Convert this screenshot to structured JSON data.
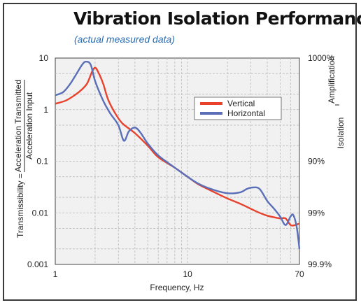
{
  "title": "Vibration Isolation Performance",
  "subtitle": "(actual measured data)",
  "colors": {
    "vertical": "#e8412c",
    "horizontal": "#5a6fb8",
    "background": "#f1f1f1",
    "grid": "#bbbbbb"
  },
  "chart_data": {
    "type": "line",
    "xscale": "log",
    "yscale": "log",
    "xlim": [
      1,
      70
    ],
    "ylim": [
      0.001,
      10
    ],
    "xlabel": "Frequency, Hz",
    "ylabel_prefix": "Transmissibility =",
    "ylabel_numerator": "Acceleration Transmitted",
    "ylabel_denominator": "Acceleration Input",
    "right_label_top": "Amplification",
    "right_label_bottom": "Isolation",
    "grid": true,
    "legend_position": "top-right",
    "xticks": [
      {
        "value": 1,
        "label": "1"
      },
      {
        "value": 10,
        "label": "10"
      },
      {
        "value": 70,
        "label": "70"
      }
    ],
    "yticks": [
      {
        "value": 10,
        "label": "10"
      },
      {
        "value": 1,
        "label": "1"
      },
      {
        "value": 0.1,
        "label": "0.1"
      },
      {
        "value": 0.01,
        "label": "0.01"
      },
      {
        "value": 0.001,
        "label": "0.001"
      }
    ],
    "right_ticks": [
      {
        "value": 10,
        "label": "1000%"
      },
      {
        "value": 0.1,
        "label": "90%"
      },
      {
        "value": 0.01,
        "label": "99%"
      },
      {
        "value": 0.001,
        "label": "99.9%"
      }
    ],
    "series": [
      {
        "name": "Vertical",
        "x": [
          1.0,
          1.2,
          1.4,
          1.6,
          1.75,
          1.9,
          2.0,
          2.1,
          2.3,
          2.5,
          2.8,
          3.2,
          4.0,
          5.0,
          6.0,
          8.0,
          10.0,
          12.0,
          15.0,
          20.0,
          25.0,
          30.0,
          35.0,
          40.0,
          45.0,
          50.0,
          55.0,
          60.0,
          65.0,
          70.0
        ],
        "y": [
          1.3,
          1.5,
          1.9,
          2.5,
          3.3,
          5.5,
          6.5,
          5.5,
          3.2,
          1.6,
          0.9,
          0.55,
          0.35,
          0.2,
          0.12,
          0.075,
          0.05,
          0.036,
          0.027,
          0.019,
          0.015,
          0.012,
          0.01,
          0.0088,
          0.0082,
          0.0078,
          0.0078,
          0.0058,
          0.0058,
          0.0062
        ]
      },
      {
        "name": "Horizontal",
        "x": [
          1.0,
          1.15,
          1.3,
          1.45,
          1.6,
          1.7,
          1.85,
          2.0,
          2.3,
          2.6,
          3.0,
          3.3,
          3.6,
          4.0,
          4.4,
          5.0,
          6.0,
          8.0,
          10.0,
          12.0,
          15.0,
          20.0,
          25.0,
          28.0,
          31.0,
          35.0,
          40.0,
          45.0,
          50.0,
          55.0,
          60.0,
          63.0,
          67.0,
          70.0
        ],
        "y": [
          1.9,
          2.2,
          3.2,
          5.0,
          7.5,
          8.5,
          7.5,
          3.6,
          1.5,
          0.85,
          0.5,
          0.25,
          0.38,
          0.45,
          0.36,
          0.22,
          0.13,
          0.075,
          0.05,
          0.037,
          0.029,
          0.024,
          0.025,
          0.029,
          0.031,
          0.029,
          0.017,
          0.012,
          0.0085,
          0.0058,
          0.0085,
          0.009,
          0.005,
          0.002
        ]
      }
    ]
  }
}
